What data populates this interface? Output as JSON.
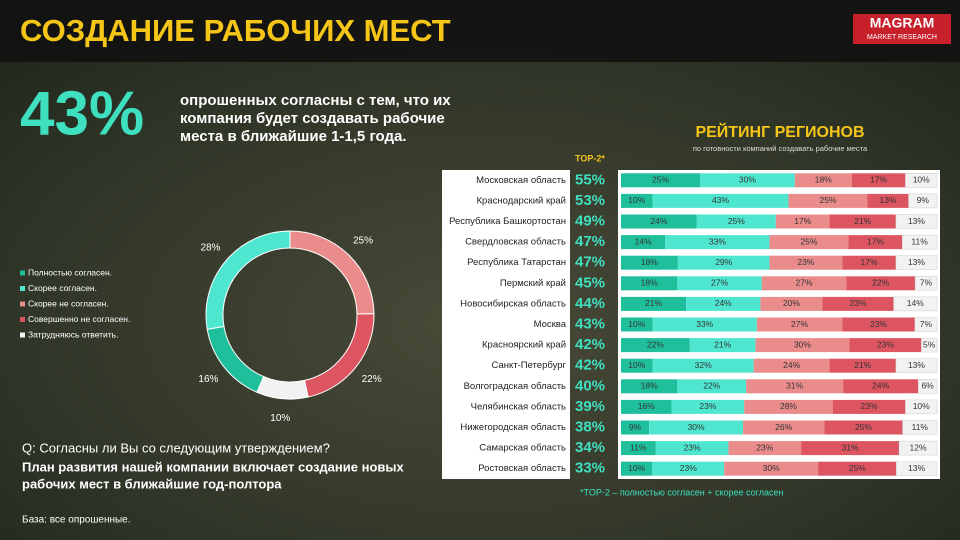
{
  "header": {
    "title": "СОЗДАНИЕ РАБОЧИХ МЕСТ",
    "logo": "MAGRAM",
    "logo_sub": "MARKET RESEARCH"
  },
  "headline": {
    "value": "43%",
    "text_lines": [
      "опрошенных согласны с тем, что их",
      "компания будет создавать рабочие",
      "места в ближайшие 1-1,5 года."
    ]
  },
  "question": {
    "q": "Q: Согласны ли Вы со следующим утверждением?",
    "statement_lines": [
      "План развития нашей компании включает создание новых",
      "рабочих мест в ближайшие год-полтора"
    ],
    "base": "База: все опрошенные."
  },
  "chart_data": [
    {
      "type": "pie",
      "donut": true,
      "categories": [
        "Полностью согласен.",
        "Скорее согласен.",
        "Скорее не согласен.",
        "Совершенно не согласен.",
        "Затрудняюсь ответить."
      ],
      "values": [
        16,
        28,
        25,
        22,
        10
      ],
      "value_labels": [
        "16%",
        "28%",
        "25%",
        "22%",
        "10%"
      ],
      "colors": [
        "#1fbf9c",
        "#4fe6d0",
        "#ea8c8c",
        "#dc5560",
        "#f2f2f2"
      ]
    },
    {
      "type": "bar",
      "orientation": "horizontal",
      "stacked": true,
      "title": "РЕЙТИНГ РЕГИОНОВ",
      "subtitle": "по готовности компаний создавать рабочие места",
      "top2_header": "TOP-2*",
      "footnote": "*TOP-2 – полностью согласен + скорее согласен",
      "categories": [
        "Московская область",
        "Краснодарский край",
        "Республика Башкортостан",
        "Свердловская область",
        "Республика Татарстан",
        "Пермский край",
        "Новосибирская область",
        "Москва",
        "Красноярский край",
        "Санкт-Петербург",
        "Волгоградская область",
        "Челябинская область",
        "Нижегородская область",
        "Самарская область",
        "Ростовская область"
      ],
      "top2": [
        55,
        53,
        49,
        47,
        47,
        45,
        44,
        43,
        42,
        42,
        40,
        39,
        38,
        34,
        33
      ],
      "top2_labels": [
        "55%",
        "53%",
        "49%",
        "47%",
        "47%",
        "45%",
        "44%",
        "43%",
        "42%",
        "42%",
        "40%",
        "39%",
        "38%",
        "34%",
        "33%"
      ],
      "series": [
        {
          "color": "#1fbf9c",
          "values": [
            25,
            10,
            24,
            14,
            18,
            18,
            21,
            10,
            22,
            10,
            18,
            16,
            9,
            11,
            10
          ],
          "value_labels": [
            "25%",
            "10%",
            "24%",
            "14%",
            "18%",
            "18%",
            "21%",
            "10%",
            "22%",
            "10%",
            "18%",
            "16%",
            "9%",
            "11%",
            "10%"
          ]
        },
        {
          "color": "#4fe6d0",
          "values": [
            30,
            43,
            25,
            33,
            29,
            27,
            24,
            33,
            21,
            32,
            22,
            23,
            30,
            23,
            23
          ],
          "value_labels": [
            "30%",
            "43%",
            "25%",
            "33%",
            "29%",
            "27%",
            "24%",
            "33%",
            "21%",
            "32%",
            "22%",
            "23%",
            "30%",
            "23%",
            "23%"
          ]
        },
        {
          "color": "#ea8c8c",
          "values": [
            18,
            25,
            17,
            25,
            23,
            27,
            20,
            27,
            30,
            24,
            31,
            28,
            26,
            23,
            30
          ],
          "value_labels": [
            "18%",
            "25%",
            "17%",
            "25%",
            "23%",
            "27%",
            "20%",
            "27%",
            "30%",
            "24%",
            "31%",
            "28%",
            "26%",
            "23%",
            "30%"
          ]
        },
        {
          "color": "#dc5560",
          "values": [
            17,
            13,
            21,
            17,
            17,
            22,
            23,
            23,
            23,
            21,
            24,
            23,
            25,
            31,
            25
          ],
          "value_labels": [
            "17%",
            "13%",
            "21%",
            "17%",
            "17%",
            "22%",
            "23%",
            "23%",
            "23%",
            "21%",
            "24%",
            "23%",
            "25%",
            "31%",
            "25%"
          ]
        },
        {
          "color": "#f2f2f2",
          "values": [
            10,
            9,
            13,
            11,
            13,
            7,
            14,
            7,
            5,
            13,
            6,
            10,
            11,
            12,
            13
          ],
          "value_labels": [
            "10%",
            "9%",
            "13%",
            "11%",
            "13%",
            "7%",
            "14%",
            "7%",
            "5%",
            "13%",
            "6%",
            "10%",
            "11%",
            "12%",
            "13%"
          ]
        }
      ]
    }
  ]
}
